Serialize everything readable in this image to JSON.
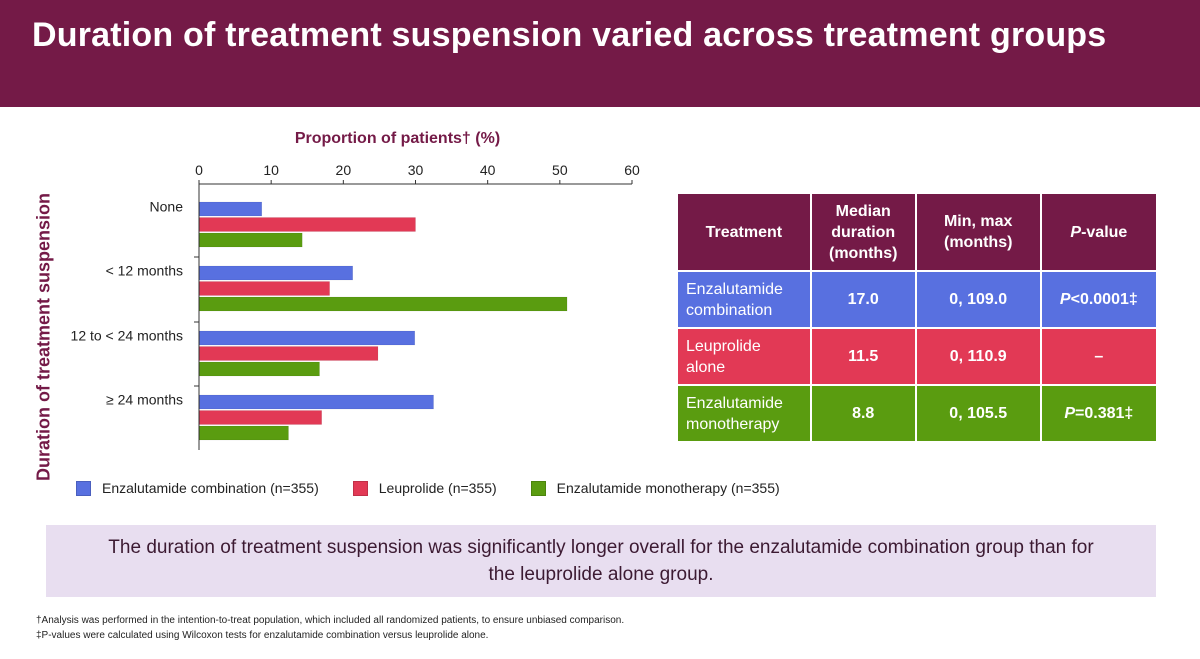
{
  "header": {
    "title": "Duration of treatment suspension varied across treatment groups"
  },
  "colors": {
    "brand": "#741a47",
    "enzalutamide_combination": "#5870e0",
    "leuprolide": "#e23955",
    "enzalutamide_monotherapy": "#5a9c10",
    "callout_bg": "#e8def0"
  },
  "chart_data": {
    "type": "bar",
    "orientation": "horizontal",
    "title": "Proportion of patients† (%)",
    "xlabel": "Proportion of patients† (%)",
    "ylabel": "Duration of treatment suspension",
    "xlim": [
      0,
      60
    ],
    "xticks": [
      "0",
      "10",
      "20",
      "30",
      "40",
      "50",
      "60"
    ],
    "categories": [
      "None",
      "< 12 months",
      "12 to < 24 months",
      "≥ 24 months"
    ],
    "series": [
      {
        "name": "Enzalutamide combination (n=355)",
        "color": "#5870e0",
        "values": [
          8.7,
          21.3,
          29.9,
          32.5
        ]
      },
      {
        "name": "Leuprolide (n=355)",
        "color": "#e23955",
        "values": [
          30.0,
          18.1,
          24.8,
          17.0
        ]
      },
      {
        "name": "Enzalutamide monotherapy (n=355)",
        "color": "#5a9c10",
        "values": [
          14.3,
          51.0,
          16.7,
          12.4
        ]
      }
    ],
    "legend_position": "bottom",
    "grid": false
  },
  "table": {
    "headers": [
      "Treatment",
      "Median duration (months)",
      "Min, max (months)",
      "P-value"
    ],
    "rows": [
      {
        "treatment": "Enzalutamide combination",
        "median": "17.0",
        "range": "0, 109.0",
        "p_value": "P<0.0001‡",
        "color": "#5870e0"
      },
      {
        "treatment": "Leuprolide alone",
        "median": "11.5",
        "range": "0, 110.9",
        "p_value": "–",
        "color": "#e23955"
      },
      {
        "treatment": "Enzalutamide monotherapy",
        "median": "8.8",
        "range": "0, 105.5",
        "p_value": "P=0.381‡",
        "color": "#5a9c10"
      }
    ]
  },
  "callout": {
    "text": "The duration of treatment suspension was significantly longer overall for the enzalutamide combination group than for the leuprolide alone group."
  },
  "footnotes": [
    "†Analysis was performed in the intention-to-treat population, which included all randomized patients, to ensure unbiased comparison.",
    "‡P-values were calculated using Wilcoxon tests for enzalutamide combination versus leuprolide alone."
  ]
}
